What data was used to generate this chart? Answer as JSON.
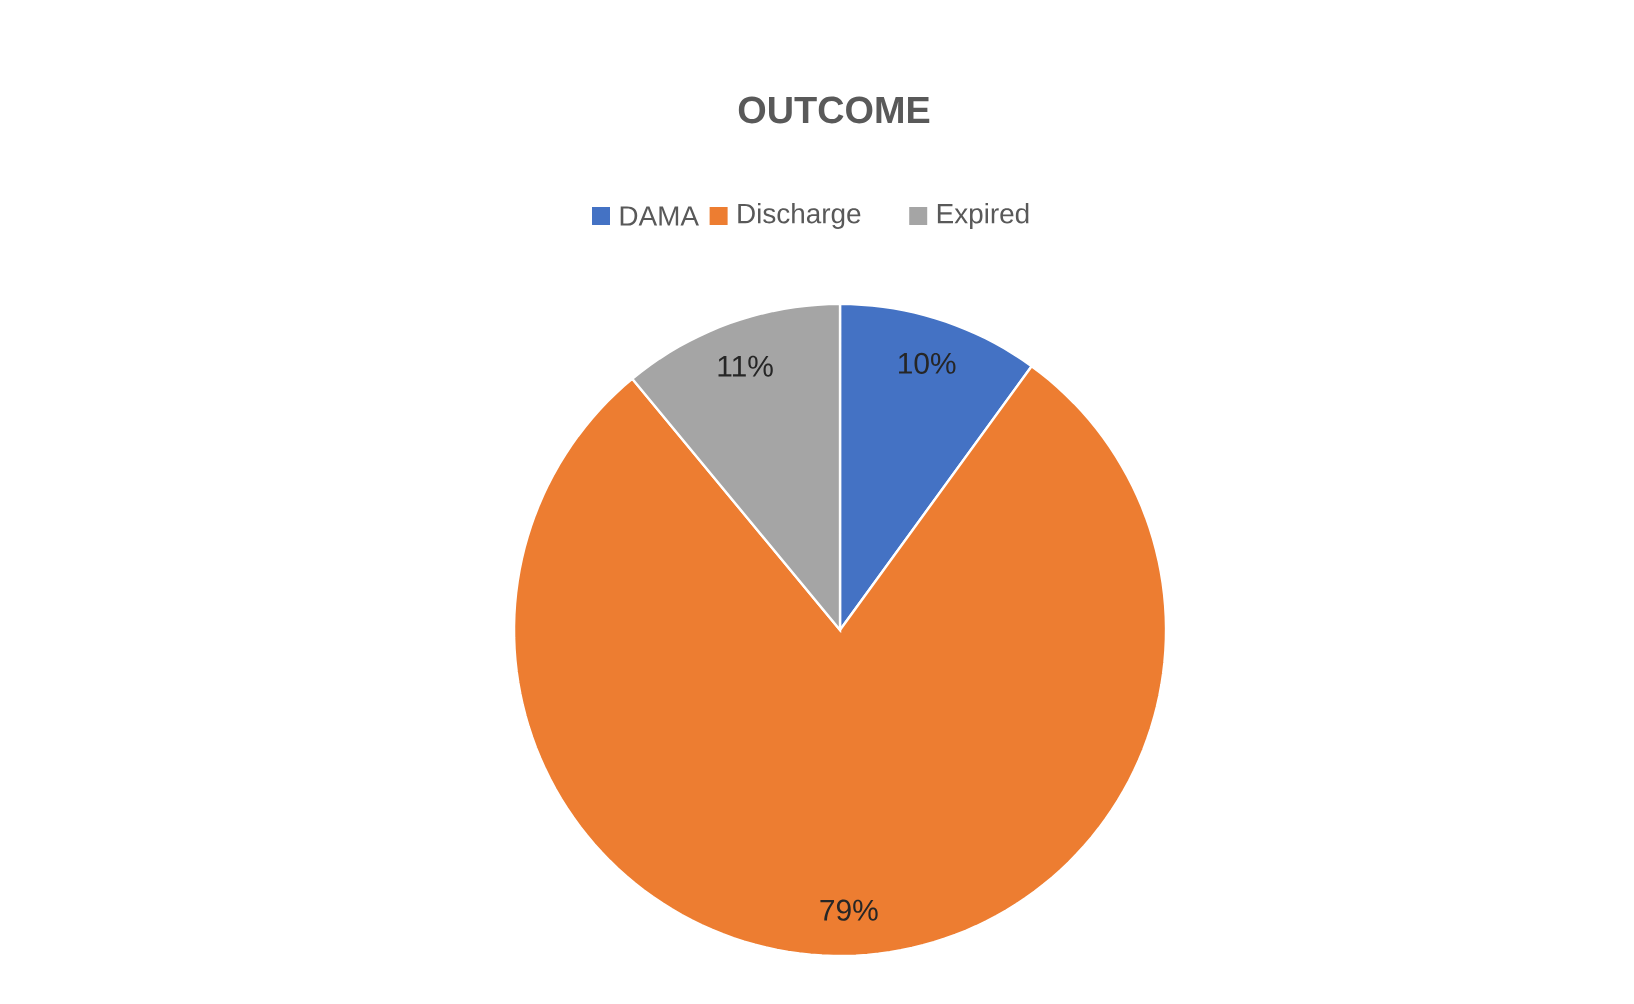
{
  "chart_data": {
    "type": "pie",
    "title": "OUTCOME",
    "categories": [
      "DAMA",
      "Discharge",
      "Expired"
    ],
    "values": [
      10,
      79,
      11
    ],
    "colors": [
      "#4472c4",
      "#ed7d31",
      "#a5a5a5"
    ],
    "value_labels": [
      "10%",
      "79%",
      "11%"
    ],
    "legend": "top"
  }
}
